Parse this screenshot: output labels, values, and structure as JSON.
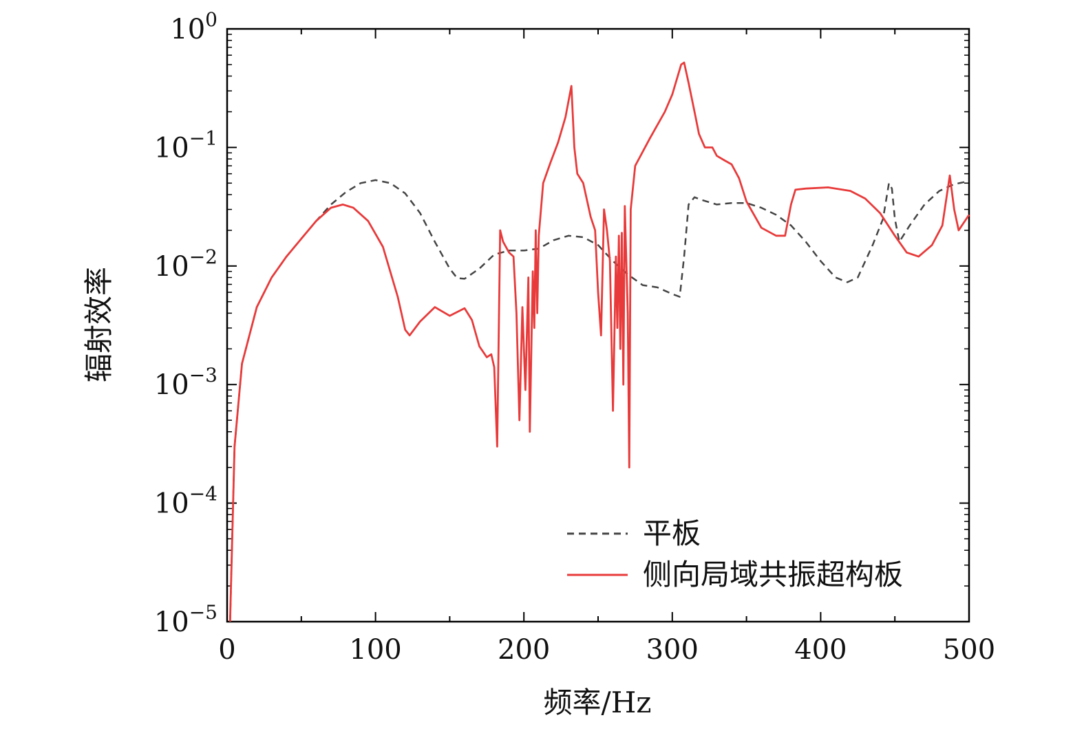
{
  "chart_data": {
    "type": "line",
    "title": "",
    "xlabel": "频率/Hz",
    "ylabel": "辐射效率",
    "xlim": [
      0,
      500
    ],
    "ylim": [
      1e-05,
      1
    ],
    "yscale": "log",
    "x_ticks": [
      0,
      100,
      200,
      300,
      400,
      500
    ],
    "x_tick_labels": [
      "0",
      "100",
      "200",
      "300",
      "400",
      "500"
    ],
    "x_minor_step": 50,
    "y_ticks": [
      {
        "value": 1,
        "base": "10",
        "exp": "0"
      },
      {
        "value": 0.1,
        "base": "10",
        "exp": "−1"
      },
      {
        "value": 0.01,
        "base": "10",
        "exp": "−2"
      },
      {
        "value": 0.001,
        "base": "10",
        "exp": "−3"
      },
      {
        "value": 0.0001,
        "base": "10",
        "exp": "−4"
      },
      {
        "value": 1e-05,
        "base": "10",
        "exp": "−5"
      }
    ],
    "legend_position": "bottom-right",
    "series": [
      {
        "name": "平板",
        "color": "#444444",
        "dash": true,
        "points": [
          [
            2,
            1e-05
          ],
          [
            5,
            0.0003
          ],
          [
            10,
            0.0015
          ],
          [
            20,
            0.0045
          ],
          [
            30,
            0.008
          ],
          [
            40,
            0.012
          ],
          [
            50,
            0.017
          ],
          [
            60,
            0.024
          ],
          [
            70,
            0.033
          ],
          [
            80,
            0.042
          ],
          [
            90,
            0.05
          ],
          [
            100,
            0.053
          ],
          [
            110,
            0.05
          ],
          [
            120,
            0.041
          ],
          [
            130,
            0.028
          ],
          [
            140,
            0.016
          ],
          [
            150,
            0.0095
          ],
          [
            155,
            0.0079
          ],
          [
            160,
            0.0078
          ],
          [
            170,
            0.0095
          ],
          [
            180,
            0.0125
          ],
          [
            190,
            0.0135
          ],
          [
            200,
            0.0135
          ],
          [
            210,
            0.014
          ],
          [
            220,
            0.0165
          ],
          [
            230,
            0.018
          ],
          [
            240,
            0.0175
          ],
          [
            250,
            0.015
          ],
          [
            260,
            0.011
          ],
          [
            270,
            0.0085
          ],
          [
            280,
            0.0069
          ],
          [
            290,
            0.0066
          ],
          [
            300,
            0.0058
          ],
          [
            305,
            0.0055
          ],
          [
            308,
            0.012
          ],
          [
            311,
            0.033
          ],
          [
            315,
            0.038
          ],
          [
            320,
            0.036
          ],
          [
            330,
            0.033
          ],
          [
            340,
            0.034
          ],
          [
            350,
            0.034
          ],
          [
            360,
            0.031
          ],
          [
            370,
            0.027
          ],
          [
            380,
            0.022
          ],
          [
            390,
            0.016
          ],
          [
            400,
            0.011
          ],
          [
            410,
            0.008
          ],
          [
            418,
            0.0073
          ],
          [
            425,
            0.008
          ],
          [
            435,
            0.015
          ],
          [
            442,
            0.025
          ],
          [
            446,
            0.05
          ],
          [
            448,
            0.045
          ],
          [
            450,
            0.025
          ],
          [
            453,
            0.016
          ],
          [
            460,
            0.022
          ],
          [
            470,
            0.033
          ],
          [
            480,
            0.043
          ],
          [
            490,
            0.049
          ],
          [
            500,
            0.052
          ]
        ]
      },
      {
        "name": "侧向局域共振超构板",
        "color": "#e83a3a",
        "dash": false,
        "points": [
          [
            2,
            1e-05
          ],
          [
            5,
            0.0003
          ],
          [
            10,
            0.0015
          ],
          [
            20,
            0.0045
          ],
          [
            30,
            0.008
          ],
          [
            40,
            0.012
          ],
          [
            50,
            0.017
          ],
          [
            60,
            0.024
          ],
          [
            70,
            0.031
          ],
          [
            78,
            0.033
          ],
          [
            85,
            0.031
          ],
          [
            95,
            0.024
          ],
          [
            105,
            0.0145
          ],
          [
            115,
            0.0055
          ],
          [
            120,
            0.0029
          ],
          [
            123,
            0.0026
          ],
          [
            130,
            0.0034
          ],
          [
            140,
            0.0045
          ],
          [
            150,
            0.0038
          ],
          [
            160,
            0.0044
          ],
          [
            165,
            0.0035
          ],
          [
            170,
            0.0021
          ],
          [
            175,
            0.0017
          ],
          [
            178,
            0.0018
          ],
          [
            180,
            0.0014
          ],
          [
            182,
            0.0003
          ],
          [
            184,
            0.02
          ],
          [
            186,
            0.016
          ],
          [
            190,
            0.013
          ],
          [
            193,
            0.012
          ],
          [
            195,
            0.004
          ],
          [
            197,
            0.0005
          ],
          [
            199,
            0.0045
          ],
          [
            201,
            0.0009
          ],
          [
            203,
            0.008
          ],
          [
            204,
            0.0004
          ],
          [
            206,
            0.009
          ],
          [
            207,
            0.003
          ],
          [
            208,
            0.02
          ],
          [
            209,
            0.004
          ],
          [
            210,
            0.018
          ],
          [
            213,
            0.05
          ],
          [
            218,
            0.075
          ],
          [
            223,
            0.11
          ],
          [
            228,
            0.18
          ],
          [
            232,
            0.33
          ],
          [
            234,
            0.1
          ],
          [
            236,
            0.06
          ],
          [
            240,
            0.05
          ],
          [
            245,
            0.026
          ],
          [
            248,
            0.02
          ],
          [
            250,
            0.006
          ],
          [
            252,
            0.0026
          ],
          [
            254,
            0.03
          ],
          [
            256,
            0.02
          ],
          [
            258,
            0.011
          ],
          [
            260,
            0.0006
          ],
          [
            262,
            0.012
          ],
          [
            263,
            0.003
          ],
          [
            264,
            0.018
          ],
          [
            265,
            0.002
          ],
          [
            266,
            0.019
          ],
          [
            267,
            0.001
          ],
          [
            268,
            0.032
          ],
          [
            270,
            0.004
          ],
          [
            271,
            0.0002
          ],
          [
            272,
            0.03
          ],
          [
            275,
            0.07
          ],
          [
            285,
            0.12
          ],
          [
            295,
            0.2
          ],
          [
            300,
            0.28
          ],
          [
            306,
            0.5
          ],
          [
            308,
            0.52
          ],
          [
            311,
            0.35
          ],
          [
            315,
            0.2
          ],
          [
            318,
            0.13
          ],
          [
            322,
            0.1
          ],
          [
            327,
            0.1
          ],
          [
            330,
            0.085
          ],
          [
            335,
            0.078
          ],
          [
            340,
            0.072
          ],
          [
            345,
            0.055
          ],
          [
            350,
            0.035
          ],
          [
            360,
            0.021
          ],
          [
            370,
            0.018
          ],
          [
            376,
            0.018
          ],
          [
            380,
            0.033
          ],
          [
            383,
            0.044
          ],
          [
            390,
            0.045
          ],
          [
            405,
            0.046
          ],
          [
            420,
            0.043
          ],
          [
            430,
            0.037
          ],
          [
            440,
            0.028
          ],
          [
            450,
            0.018
          ],
          [
            458,
            0.013
          ],
          [
            466,
            0.012
          ],
          [
            475,
            0.015
          ],
          [
            482,
            0.022
          ],
          [
            487,
            0.058
          ],
          [
            490,
            0.03
          ],
          [
            493,
            0.02
          ],
          [
            500,
            0.027
          ]
        ]
      }
    ]
  }
}
